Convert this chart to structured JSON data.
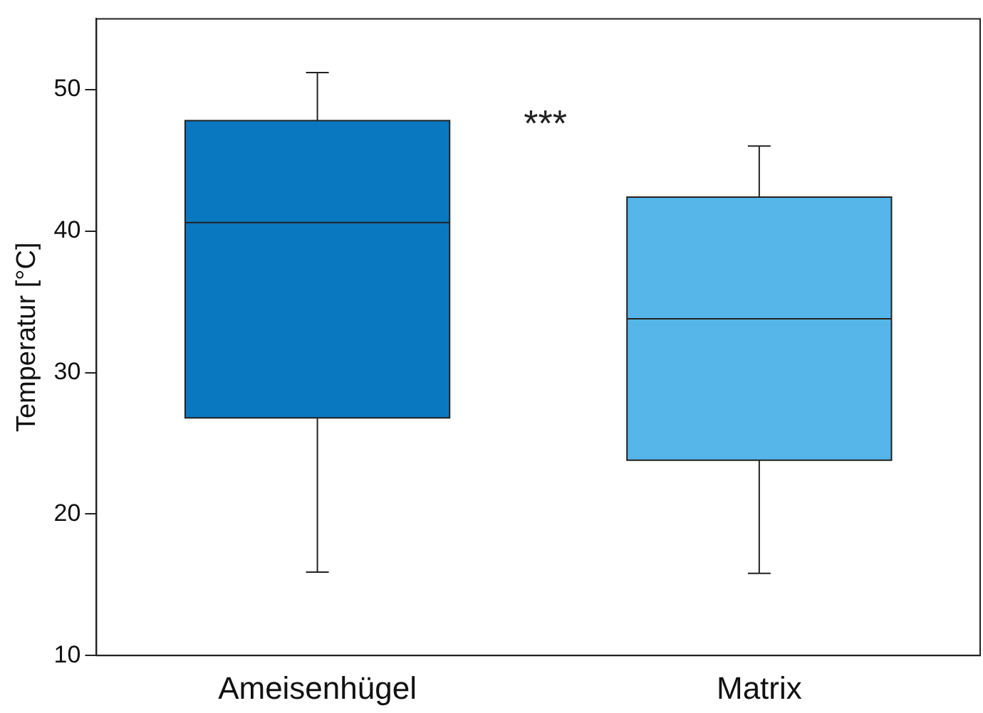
{
  "chart_data": {
    "type": "box",
    "ylabel": "Temperatur [°C]",
    "categories": [
      "Ameisenhügel",
      "Matrix"
    ],
    "boxes": [
      {
        "low": 15.9,
        "q1": 26.8,
        "median": 40.6,
        "q3": 47.8,
        "high": 51.2
      },
      {
        "low": 15.8,
        "q1": 23.8,
        "median": 33.8,
        "q3": 42.4,
        "high": 46.0
      }
    ],
    "colors": [
      "#0a78c0",
      "#56b6ea"
    ],
    "ylim": [
      10,
      55
    ],
    "yticks": [
      10,
      20,
      30,
      40,
      50
    ],
    "grid": false,
    "legend": false,
    "annotations": [
      "***"
    ]
  }
}
